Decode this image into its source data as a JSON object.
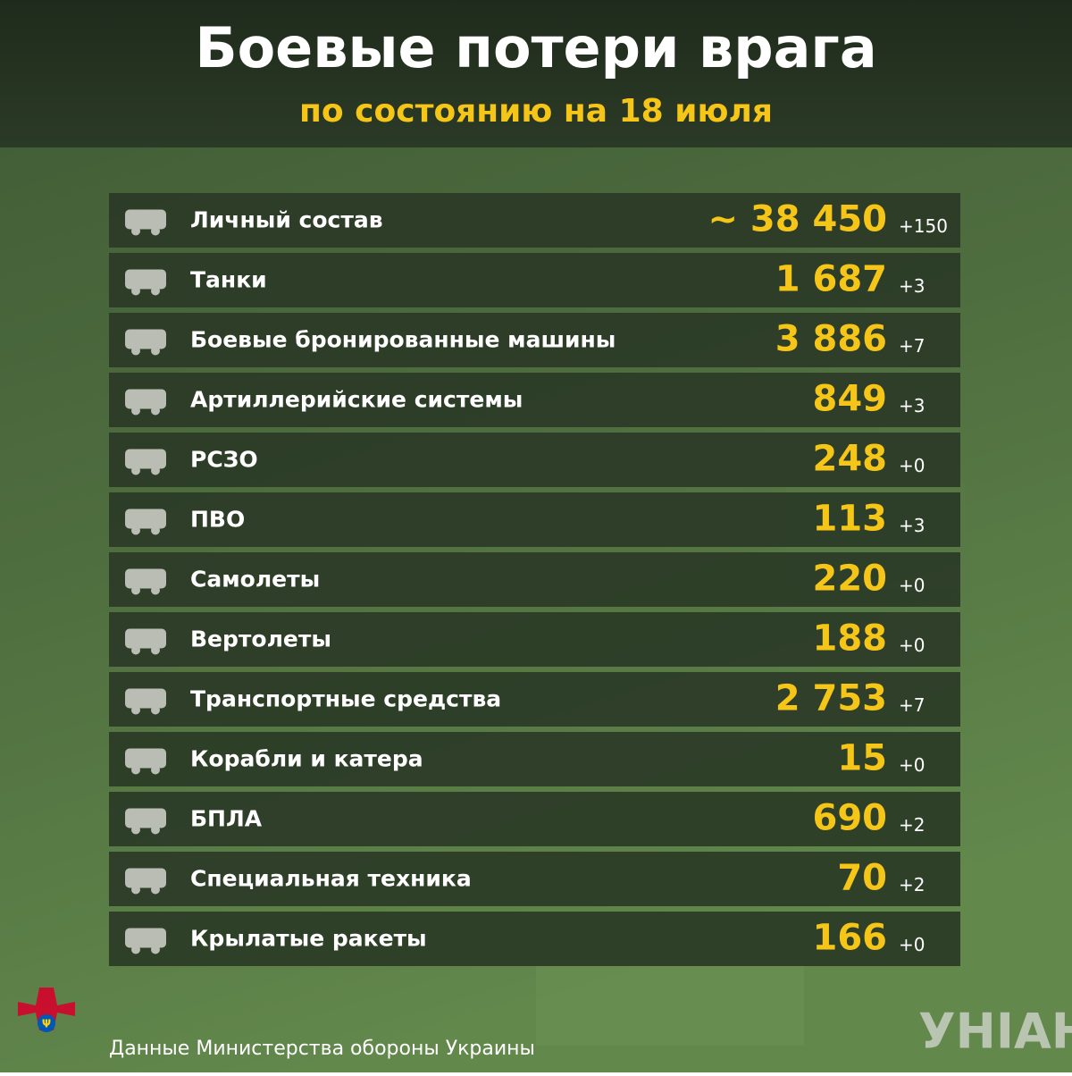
{
  "header": {
    "title": "Боевые потери врага",
    "subtitle": "по состоянию на 18 июля"
  },
  "table": {
    "rows": [
      {
        "label": "Личный состав",
        "value": "~ 38 450",
        "delta": "+150"
      },
      {
        "label": "Танки",
        "value": "1 687",
        "delta": "+3"
      },
      {
        "label": "Боевые бронированные машины",
        "value": "3 886",
        "delta": "+7"
      },
      {
        "label": "Артиллерийские системы",
        "value": "849",
        "delta": "+3"
      },
      {
        "label": "РСЗО",
        "value": "248",
        "delta": "+0"
      },
      {
        "label": "ПВО",
        "value": "113",
        "delta": "+3"
      },
      {
        "label": "Самолеты",
        "value": "220",
        "delta": "+0"
      },
      {
        "label": "Вертолеты",
        "value": "188",
        "delta": "+0"
      },
      {
        "label": "Транспортные средства",
        "value": "2 753",
        "delta": "+7"
      },
      {
        "label": "Корабли и катера",
        "value": "15",
        "delta": "+0"
      },
      {
        "label": "БПЛА",
        "value": "690",
        "delta": "+2"
      },
      {
        "label": "Специальная техника",
        "value": "70",
        "delta": "+2"
      },
      {
        "label": "Крылатые ракеты",
        "value": "166",
        "delta": "+0"
      }
    ]
  },
  "footer": {
    "source": "Данные Министерства обороны Украины",
    "logo": "УНІАН"
  }
}
